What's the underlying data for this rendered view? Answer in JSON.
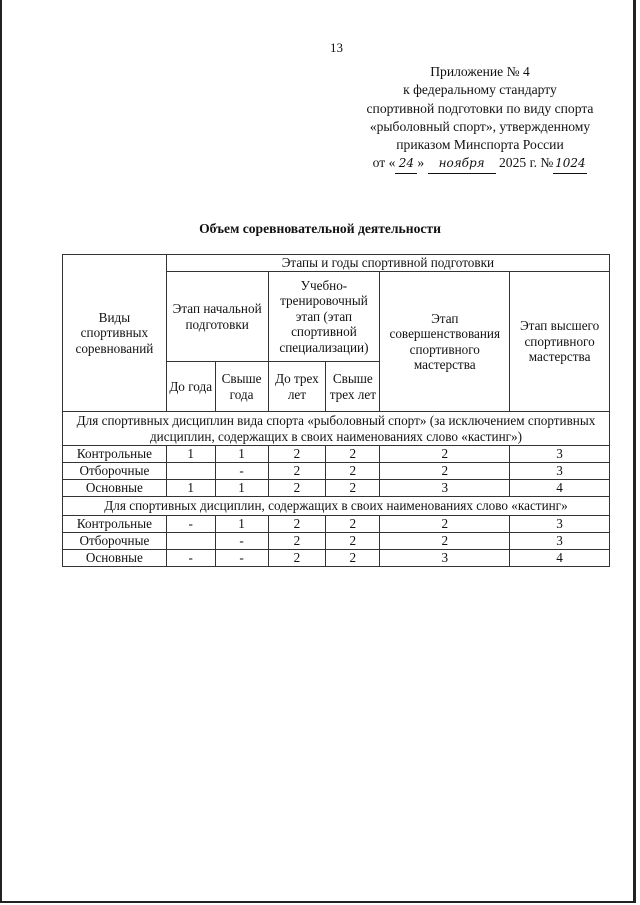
{
  "page_number": "13",
  "appendix": {
    "lines": [
      "Приложение № 4",
      "к федеральному стандарту",
      "спортивной подготовки по виду спорта",
      "«рыболовный спорт», утвержденному",
      "приказом Минспорта России"
    ],
    "date_prefix": "от «",
    "day": "24",
    "date_mid": "»",
    "month": "ноября",
    "year": "2025 г. №",
    "number": "1024"
  },
  "title": "Объем соревновательной деятельности",
  "table": {
    "col_kind": "Виды спортивных соревнований",
    "stages_header": "Этапы и годы спортивной подготовки",
    "stage_initial": "Этап начальной подготовки",
    "stage_training": "Учебно-тренировочный этап (этап спортивной специализации)",
    "stage_improvement": "Этап совершенствования спортивного мастерства",
    "stage_highest": "Этап высшего спортивного мастерства",
    "sub": [
      "До года",
      "Свыше года",
      "До трех лет",
      "Свыше трех лет"
    ],
    "groups": [
      {
        "title": "Для спортивных дисциплин вида спорта «рыболовный спорт» (за исключением спортивных дисциплин, содержащих в своих наименованиях слово «кастинг»)",
        "rows": [
          {
            "kind": "Контрольные",
            "values": [
              "1",
              "1",
              "2",
              "2",
              "2",
              "3"
            ]
          },
          {
            "kind": "Отборочные",
            "values": [
              "",
              "-",
              "2",
              "2",
              "2",
              "3"
            ]
          },
          {
            "kind": "Основные",
            "values": [
              "1",
              "1",
              "2",
              "2",
              "3",
              "4"
            ]
          }
        ]
      },
      {
        "title": "Для спортивных дисциплин, содержащих в своих наименованиях слово «кастинг»",
        "rows": [
          {
            "kind": "Контрольные",
            "values": [
              "-",
              "1",
              "2",
              "2",
              "2",
              "3"
            ]
          },
          {
            "kind": "Отборочные",
            "values": [
              "",
              "-",
              "2",
              "2",
              "2",
              "3"
            ]
          },
          {
            "kind": "Основные",
            "values": [
              "-",
              "-",
              "2",
              "2",
              "3",
              "4"
            ]
          }
        ]
      }
    ]
  }
}
